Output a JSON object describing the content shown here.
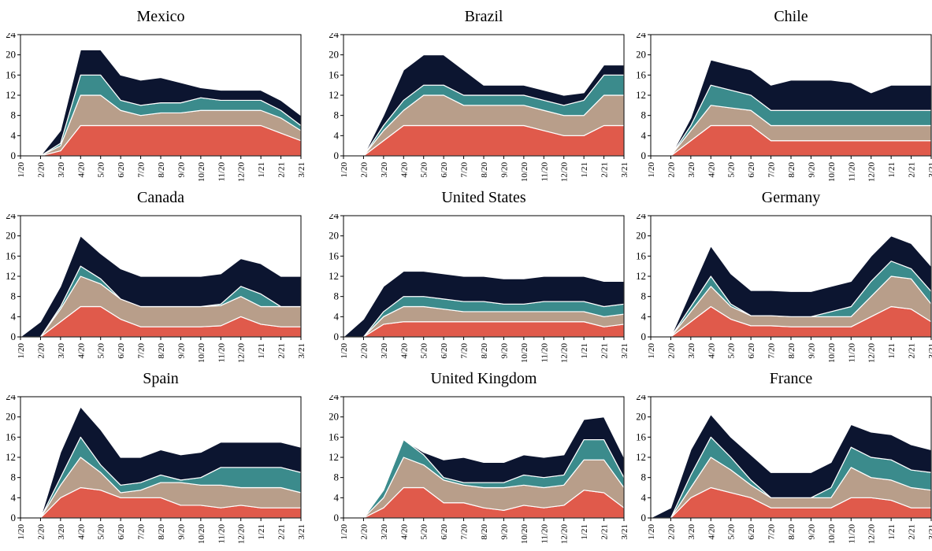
{
  "chart_data": {
    "type": "area",
    "stacked": true,
    "x": [
      "1/20",
      "2/20",
      "3/20",
      "4/20",
      "5/20",
      "6/20",
      "7/20",
      "8/20",
      "9/20",
      "10/20",
      "11/20",
      "12/20",
      "1/21",
      "2/21",
      "3/21"
    ],
    "ylim": [
      0,
      24
    ],
    "yticks": [
      0,
      4,
      8,
      12,
      16,
      20,
      24
    ],
    "grid": false,
    "legend": "none",
    "colors": [
      "#e05a4b",
      "#b89e8a",
      "#3b8b8c",
      "#0c1530"
    ],
    "panels": [
      {
        "title": "Mexico",
        "series": [
          {
            "values": [
              0,
              0,
              1,
              6,
              6,
              6,
              6,
              6,
              6,
              6,
              6,
              6,
              6,
              4.5,
              3
            ]
          },
          {
            "values": [
              0,
              0,
              1,
              6,
              6,
              3,
              2,
              2.5,
              2.5,
              3,
              3,
              3,
              3,
              3,
              2
            ]
          },
          {
            "values": [
              0,
              0,
              0.5,
              4,
              4,
              2,
              2,
              2,
              2,
              2.5,
              2,
              2,
              2,
              1.5,
              1
            ]
          },
          {
            "values": [
              0,
              0,
              2.5,
              5,
              5,
              5,
              5,
              5,
              4,
              2,
              2,
              2,
              2,
              2,
              2
            ]
          }
        ]
      },
      {
        "title": "Brazil",
        "series": [
          {
            "values": [
              0,
              0,
              3,
              6,
              6,
              6,
              6,
              6,
              6,
              6,
              5,
              4,
              4,
              6,
              6
            ]
          },
          {
            "values": [
              0,
              0,
              2,
              3,
              6,
              6,
              4,
              4,
              4,
              4,
              4,
              4,
              4,
              6,
              6
            ]
          },
          {
            "values": [
              0,
              0,
              1,
              2,
              2,
              2,
              2,
              2,
              2,
              2,
              2,
              2,
              3,
              4,
              4
            ]
          },
          {
            "values": [
              0,
              0,
              2,
              6,
              6,
              6,
              5,
              2,
              2,
              2,
              2,
              2,
              1.5,
              2,
              2
            ]
          }
        ]
      },
      {
        "title": "Chile",
        "series": [
          {
            "values": [
              0,
              0,
              3,
              6,
              6,
              6,
              3,
              3,
              3,
              3,
              3,
              3,
              3,
              3,
              3
            ]
          },
          {
            "values": [
              0,
              0,
              2,
              4,
              3.5,
              3,
              3,
              3,
              3,
              3,
              3,
              3,
              3,
              3,
              3
            ]
          },
          {
            "values": [
              0,
              0,
              1,
              4,
              3.5,
              3,
              3,
              3,
              3,
              3,
              3,
              3,
              3,
              3,
              3
            ]
          },
          {
            "values": [
              0,
              0,
              1.5,
              5,
              5,
              5,
              5,
              6,
              6,
              6,
              5.5,
              3.5,
              5,
              5,
              5
            ]
          }
        ]
      },
      {
        "title": "Canada",
        "series": [
          {
            "values": [
              0,
              0,
              3,
              6,
              6,
              3.5,
              2,
              2,
              2,
              2,
              2.2,
              4,
              2.5,
              2,
              2
            ]
          },
          {
            "values": [
              0,
              0,
              2.5,
              6,
              4.5,
              4,
              4,
              4,
              4,
              4,
              4,
              4,
              3.5,
              4,
              4
            ]
          },
          {
            "values": [
              0,
              0,
              0.5,
              2,
              1,
              0,
              0,
              0,
              0,
              0,
              0.3,
              2,
              2.5,
              0,
              0
            ]
          },
          {
            "values": [
              0,
              3,
              4,
              6,
              5,
              6,
              6,
              6,
              6,
              6,
              6,
              5.5,
              6,
              6,
              6
            ]
          }
        ]
      },
      {
        "title": "United States",
        "series": [
          {
            "values": [
              0,
              0,
              2.5,
              3,
              3,
              3,
              3,
              3,
              3,
              3,
              3,
              3,
              3,
              2,
              2.5
            ]
          },
          {
            "values": [
              0,
              0,
              1.5,
              3,
              3,
              2.5,
              2,
              2,
              2,
              2,
              2,
              2,
              2,
              2,
              2
            ]
          },
          {
            "values": [
              0,
              0,
              1,
              2,
              2,
              2,
              2,
              2,
              1.5,
              1.5,
              2,
              2,
              2,
              2,
              2
            ]
          },
          {
            "values": [
              0,
              3.5,
              5,
              5,
              5,
              5,
              5,
              5,
              5,
              5,
              5,
              5,
              5,
              5,
              4.5
            ]
          }
        ]
      },
      {
        "title": "Germany",
        "series": [
          {
            "values": [
              0,
              0,
              3,
              6,
              3.5,
              2.2,
              2.2,
              2,
              2,
              2,
              2,
              4,
              6,
              5.5,
              3
            ]
          },
          {
            "values": [
              0,
              0,
              2,
              4,
              2.5,
              2,
              2,
              2,
              2,
              2,
              2,
              4,
              6,
              6,
              3.5
            ]
          },
          {
            "values": [
              0,
              0,
              1,
              2,
              0.5,
              0,
              0,
              0,
              0,
              1,
              2,
              3,
              3,
              2,
              2.5
            ]
          },
          {
            "values": [
              0,
              0,
              3,
              6,
              6,
              5,
              5,
              5,
              5,
              5,
              5,
              5,
              5,
              5,
              5
            ]
          }
        ]
      },
      {
        "title": "Spain",
        "series": [
          {
            "values": [
              0,
              0,
              4,
              6,
              5.5,
              4,
              4,
              4,
              2.5,
              2.5,
              2,
              2.5,
              2,
              2,
              2
            ]
          },
          {
            "values": [
              0,
              0,
              2.5,
              6,
              3.5,
              1,
              1.5,
              3,
              4.5,
              4,
              4.5,
              3.5,
              4,
              4,
              3
            ]
          },
          {
            "values": [
              0,
              0,
              1.5,
              4,
              1.5,
              1.5,
              1.5,
              1.5,
              0.5,
              1.5,
              3.5,
              4,
              4,
              4,
              4
            ]
          },
          {
            "values": [
              0,
              0,
              5,
              6,
              7,
              5.5,
              5,
              5,
              5,
              5,
              5,
              5,
              5,
              5,
              5
            ]
          }
        ]
      },
      {
        "title": "United Kingdom",
        "series": [
          {
            "values": [
              0,
              0,
              2,
              6,
              6,
              3,
              3,
              2,
              1.5,
              2.5,
              2,
              2.5,
              5.5,
              5,
              2
            ]
          },
          {
            "values": [
              0,
              0,
              2,
              6,
              4.5,
              4.5,
              3.5,
              4,
              4.5,
              4,
              4,
              4,
              6,
              6.5,
              4
            ]
          },
          {
            "values": [
              0,
              0,
              1.5,
              3.5,
              2,
              0.5,
              0.5,
              1,
              1,
              2,
              2,
              2,
              4,
              4,
              2
            ]
          },
          {
            "values": [
              0,
              0,
              0,
              0,
              0.5,
              3.5,
              5,
              4,
              4,
              4,
              4,
              4,
              4,
              4.5,
              4
            ]
          }
        ]
      },
      {
        "title": "France",
        "series": [
          {
            "values": [
              0,
              0,
              4,
              6,
              5,
              4,
              2,
              2,
              2,
              2,
              4,
              4,
              3.5,
              2,
              2
            ]
          },
          {
            "values": [
              0,
              0,
              2,
              6,
              4.5,
              2.5,
              2,
              2,
              2,
              2,
              6,
              4,
              4,
              4,
              3.5
            ]
          },
          {
            "values": [
              0,
              0,
              2.5,
              4,
              2.5,
              1,
              0,
              0,
              0,
              2,
              4,
              4,
              4,
              3.5,
              3.5
            ]
          },
          {
            "values": [
              0,
              2,
              5,
              4.5,
              4,
              5,
              5,
              5,
              5,
              5,
              4.5,
              5,
              5,
              5,
              4.5
            ]
          }
        ]
      }
    ]
  }
}
